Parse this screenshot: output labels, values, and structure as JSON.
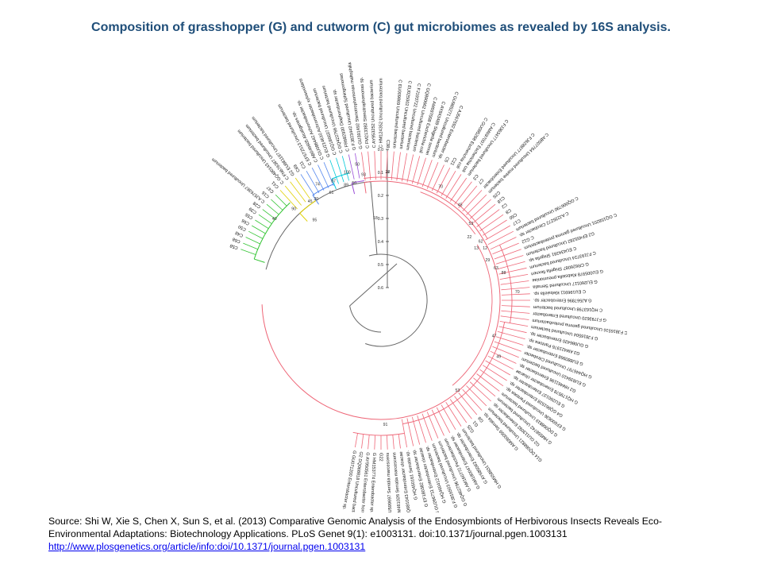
{
  "title": "Composition of grasshopper (G) and cutworm (C) gut microbiomes as revealed by 16S analysis.",
  "caption": {
    "line1": "Source: Shi W, Xie S, Chen X, Sun S, et al. (2013) Comparative Genomic Analysis of the Endosymbionts of Herbivorous Insects Reveals Eco-",
    "line2": "Environmental Adaptations: Biotechnology Applications. PLoS Genet 9(1): e1003131.  doi:10.1371/journal.pgen.1003131",
    "link": "http://www.plosgenetics.org/article/info:doi/10.1371/journal.pgen.1003131"
  },
  "scale": {
    "labels": [
      "0.0",
      "0.1",
      "0.2",
      "0.3",
      "0.4",
      "0.5",
      "0.6"
    ]
  },
  "colors": {
    "green": "#33c433",
    "yellow": "#e0d000",
    "blue": "#5588ee",
    "cyan": "#00c8d8",
    "purple": "#9a4dd8",
    "red": "#ee6677",
    "grey": "#666666",
    "title": "#1f4e79"
  },
  "clades": [
    {
      "name": "green",
      "color": "#33c433",
      "start": -72,
      "end": -43
    },
    {
      "name": "yellow",
      "color": "#e0d000",
      "start": -43,
      "end": -33
    },
    {
      "name": "blue",
      "color": "#5588ee",
      "start": -33,
      "end": -22
    },
    {
      "name": "cyan",
      "color": "#00c8d8",
      "start": -22,
      "end": -14
    },
    {
      "name": "purple",
      "color": "#9a4dd8",
      "start": -14,
      "end": -8
    },
    {
      "name": "red",
      "color": "#ee6677",
      "start": -8,
      "end": 268
    }
  ],
  "leaves": [
    {
      "t": "C58",
      "a": -70
    },
    {
      "t": "C68",
      "a": -67.5
    },
    {
      "t": "C48",
      "a": -65
    },
    {
      "t": "C50",
      "a": -62.5
    },
    {
      "t": "C66",
      "a": -60
    },
    {
      "t": "C55",
      "a": -57.5
    },
    {
      "t": "C39",
      "a": -55
    },
    {
      "t": "C28",
      "a": -52.5
    },
    {
      "t": "C AJ576367 Uncultured bacterium",
      "a": -50
    },
    {
      "t": "C16",
      "a": -47.5
    },
    {
      "t": "C47",
      "a": -45
    },
    {
      "t": "C41",
      "a": -42.5
    },
    {
      "t": "C GQ480143 Uncultured bacterium",
      "a": -40
    },
    {
      "t": "C FN676387 Uncultured bacterium",
      "a": -37.5
    },
    {
      "t": "G2 EU881197 Uncultured bacterium",
      "a": -35
    },
    {
      "t": "C69",
      "a": -32.5
    },
    {
      "t": "C11",
      "a": -30
    },
    {
      "t": "C EF572513 Uncultured bacterium",
      "a": -27.5
    },
    {
      "t": "C AB046605 Alcaligenes sp.",
      "a": -25
    },
    {
      "t": "C GU086442 Achromobacter sp.",
      "a": -22.5
    },
    {
      "t": "G EU214610 Achromobacter xylosoxidans",
      "a": -20
    },
    {
      "t": "C GQ186637 Uncultured bacterium",
      "a": -17.5
    },
    {
      "t": "C GQ422766 Uncultured bacterium",
      "a": -15
    },
    {
      "t": "C FR682930 Diaphorobacter sp.",
      "a": -12.5
    },
    {
      "t": "G FJ823442 Uncultured Sphingomonas",
      "a": -10
    },
    {
      "t": "G GU391492 Stenotrophomonas maltophilia",
      "a": -7.5
    },
    {
      "t": "C FM213382 Stenotrophomonas sp.",
      "a": -5
    },
    {
      "t": "C AY953252 Uncultured bacterium",
      "a": -2.5
    },
    {
      "t": "C HM124352 Uncultured bacterium",
      "a": 0
    },
    {
      "t": "C38",
      "a": 2.5
    },
    {
      "t": "C EU009869 Uncultured bacterium",
      "a": 5
    },
    {
      "t": "C EU025002 Uncultured bacterium",
      "a": 7.5
    },
    {
      "t": "C FJ193722 Uncultured bacterium",
      "a": 10
    },
    {
      "t": "C GQ890662 Uncultured bacterium",
      "a": 12.5
    },
    {
      "t": "C AM697008 Escherichia coli",
      "a": 15
    },
    {
      "t": "C AY843489 Shigella sonnei",
      "a": 17.5
    },
    {
      "t": "C GU985271 Uncultured bacterium",
      "a": 20
    },
    {
      "t": "C AJ567592 Enterobacter sp.",
      "a": 22.5
    },
    {
      "t": "C5",
      "a": 25
    },
    {
      "t": "C21",
      "a": 27.5
    },
    {
      "t": "C GU085268 Escherichia coli",
      "a": 30
    },
    {
      "t": "C AM697007 Escherichia coli",
      "a": 32.5
    },
    {
      "t": "C FJ363477 Uncultured bacterium",
      "a": 35
    },
    {
      "t": "C3",
      "a": 37.5
    },
    {
      "t": "C7",
      "a": 40
    },
    {
      "t": "C FJ628977 Uncultured Enterobacter",
      "a": 42.5
    },
    {
      "t": "C AB507764 Uncultured marine bacterium",
      "a": 45
    },
    {
      "t": "C26",
      "a": 47.5
    },
    {
      "t": "C18",
      "a": 50
    },
    {
      "t": "C2",
      "a": 52.5
    },
    {
      "t": "C8",
      "a": 55
    },
    {
      "t": "C60",
      "a": 57.5
    },
    {
      "t": "C17",
      "a": 60
    },
    {
      "t": "C GQ006790 Uncultured bacterium",
      "a": 62.5
    },
    {
      "t": "C AJ235272 Citrobacter sp.",
      "a": 65
    },
    {
      "t": "C G12",
      "a": 67.5
    },
    {
      "t": "C GQ158201 Uncultured gamma proteobacterium",
      "a": 70
    },
    {
      "t": "G2 EF455282 Uncultured bacterium",
      "a": 72.5
    },
    {
      "t": "C EU434281 Shigella sp.",
      "a": 75
    },
    {
      "t": "C FJ193724 Uncultured bacterium",
      "a": 77.5
    },
    {
      "t": "G CR626087 Shigella flexneri",
      "a": 80
    },
    {
      "t": "G EU005978 Klebsiella pneumoniae",
      "a": 82.5
    },
    {
      "t": "G EU260117 Uncultured Serratia",
      "a": 85
    },
    {
      "t": "C EU196911 Klebsiella sp.",
      "a": 87.5
    },
    {
      "t": "G AJ567896 Enterobacter sp.",
      "a": 90
    },
    {
      "t": "C HQ163798 Uncultured bacterium",
      "a": 92.5
    },
    {
      "t": "G FJ793620 Uncultured Enterobacter",
      "a": 95
    },
    {
      "t": "C FJ816516 Uncultured gamma proteobacterium",
      "a": 97.5
    },
    {
      "t": "G FJ816504 Uncultured bacterium",
      "a": 100
    },
    {
      "t": "G GU086420 Enterobacter sp.",
      "a": 102.5
    },
    {
      "t": "G3 AM421976 Pantoea sp.",
      "a": 105
    },
    {
      "t": "G EU880968 Enterobacter sp.",
      "a": 107.5
    },
    {
      "t": "G HQ446797 Uncultured Citrobacter",
      "a": 110
    },
    {
      "t": "G EU839410 Uncultured bacterium",
      "a": 112.5
    },
    {
      "t": "G2 HM461196 Enterobacter sp.",
      "a": 115
    },
    {
      "t": "G HQ179578 Enterobacter cloacae",
      "a": 117.5
    },
    {
      "t": "G EU260137 Enterobacter sp.",
      "a": 120
    },
    {
      "t": "G4 GQ861528 Enterobacter sp.",
      "a": 122.5
    },
    {
      "t": "G EF600636 Uncultured Pantoea sp.",
      "a": 125
    },
    {
      "t": "G DQ068819 Uncultured bacterium",
      "a": 127.5
    },
    {
      "t": "G HM558742 Uncultured bacterium",
      "a": 130
    },
    {
      "t": "G2 GU113092 Enterobacter sp.",
      "a": 132.5
    },
    {
      "t": "G14 DQ068821 Uncultured bacterium",
      "a": 135
    },
    {
      "t": "G AM050059 Serratia sp.",
      "a": 137.5
    },
    {
      "t": "G6",
      "a": 140
    },
    {
      "t": "G1",
      "a": 142.5
    },
    {
      "t": "G25",
      "a": 145
    },
    {
      "t": "G HM558831 Uncultured bacterium",
      "a": 147.5
    },
    {
      "t": "G AY685062 Enterobacter sp.",
      "a": 150
    },
    {
      "t": "G AM180047 Enterobacter sp.",
      "a": 152.5
    },
    {
      "t": "G AM160772 Pectobacterium",
      "a": 155
    },
    {
      "t": "G GQ462796 Uncultured bacterium",
      "a": 157.5
    },
    {
      "t": "G FJ816503 Uncultured bacterium",
      "a": 160
    },
    {
      "t": "G HQ460412 Enterobacter sp.",
      "a": 162.5
    },
    {
      "t": "G GU266711 Enterobacter cloacae",
      "a": 165
    },
    {
      "t": "G EF180382 Enterobacter sp.",
      "a": 167.5
    },
    {
      "t": "G HQ450161 Serratia sp.",
      "a": 170
    },
    {
      "t": "G HQ681043 Enterobacter cloacae",
      "a": 172.5
    },
    {
      "t": "G HM461026 Serratia marcescens",
      "a": 175
    },
    {
      "t": "G EU599697 Serratia marcescens",
      "a": 177.5
    },
    {
      "t": "G22",
      "a": 180
    },
    {
      "t": "G HM153774 Enterobacter sp.",
      "a": 182.5
    },
    {
      "t": "G AY950561 Enterobacter hormaechei",
      "a": 185
    },
    {
      "t": "G2 DQ068818 Uncultured bacterium",
      "a": 187.5
    },
    {
      "t": "G GU071200 Enterobacter sp.",
      "a": 190
    }
  ],
  "branch_labels": [
    {
      "t": "40",
      "a": -53,
      "r": 168
    },
    {
      "t": "90",
      "a": -44,
      "r": 158
    },
    {
      "t": "95",
      "a": -40,
      "r": 130
    },
    {
      "t": "45",
      "a": -36,
      "r": 152
    },
    {
      "t": "30",
      "a": -33,
      "r": 150
    },
    {
      "t": "74",
      "a": -29,
      "r": 165
    },
    {
      "t": "61",
      "a": -25,
      "r": 148
    },
    {
      "t": "87",
      "a": -22,
      "r": 160
    },
    {
      "t": "89",
      "a": -17,
      "r": 150
    },
    {
      "t": "50",
      "a": -13,
      "r": 150
    },
    {
      "t": "100",
      "a": -15,
      "r": 165
    },
    {
      "t": "50",
      "a": -10,
      "r": 172
    },
    {
      "t": "93",
      "a": -8,
      "r": 158
    },
    {
      "t": "18",
      "a": -4,
      "r": 102
    },
    {
      "t": "28",
      "a": 3,
      "r": 160
    },
    {
      "t": "70",
      "a": 28,
      "r": 160
    },
    {
      "t": "45",
      "a": 40,
      "r": 155
    },
    {
      "t": "53",
      "a": 50,
      "r": 148
    },
    {
      "t": "22",
      "a": 55,
      "r": 136
    },
    {
      "t": "62",
      "a": 60,
      "r": 145
    },
    {
      "t": "13",
      "a": 62,
      "r": 136
    },
    {
      "t": "12",
      "a": 64,
      "r": 146
    },
    {
      "t": "29",
      "a": 70,
      "r": 143
    },
    {
      "t": "63",
      "a": 75,
      "r": 150
    },
    {
      "t": "88",
      "a": 78,
      "r": 158
    },
    {
      "t": "70",
      "a": 87,
      "r": 172
    },
    {
      "t": "47",
      "a": 108,
      "r": 150
    },
    {
      "t": "49",
      "a": 116,
      "r": 165
    },
    {
      "t": "53",
      "a": 140,
      "r": 150
    },
    {
      "t": "91",
      "a": 178,
      "r": 158
    }
  ]
}
